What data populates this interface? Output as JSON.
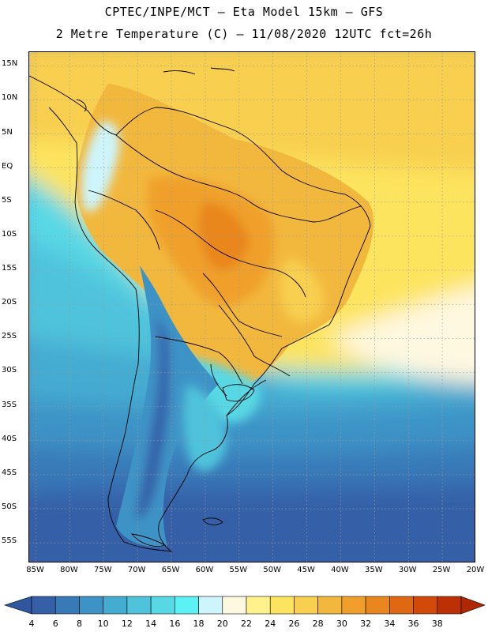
{
  "title_line1": "CPTEC/INPE/MCT –  Eta Model 15km – GFS",
  "title_line2": "2 Metre Temperature (C) – 11/08/2020 12UTC fct=26h",
  "map": {
    "projection": "lat-lon",
    "lon_range": [
      -86,
      -20
    ],
    "lat_range": [
      -58,
      17
    ],
    "lat_labels": [
      {
        "value": 15,
        "text": "15N"
      },
      {
        "value": 10,
        "text": "10N"
      },
      {
        "value": 5,
        "text": "5N"
      },
      {
        "value": 0,
        "text": "EQ"
      },
      {
        "value": -5,
        "text": "5S"
      },
      {
        "value": -10,
        "text": "10S"
      },
      {
        "value": -15,
        "text": "15S"
      },
      {
        "value": -20,
        "text": "20S"
      },
      {
        "value": -25,
        "text": "25S"
      },
      {
        "value": -30,
        "text": "30S"
      },
      {
        "value": -35,
        "text": "35S"
      },
      {
        "value": -40,
        "text": "40S"
      },
      {
        "value": -45,
        "text": "45S"
      },
      {
        "value": -50,
        "text": "50S"
      },
      {
        "value": -55,
        "text": "55S"
      }
    ],
    "lon_labels": [
      {
        "value": -85,
        "text": "85W"
      },
      {
        "value": -80,
        "text": "80W"
      },
      {
        "value": -75,
        "text": "75W"
      },
      {
        "value": -70,
        "text": "70W"
      },
      {
        "value": -65,
        "text": "65W"
      },
      {
        "value": -60,
        "text": "60W"
      },
      {
        "value": -55,
        "text": "55W"
      },
      {
        "value": -50,
        "text": "50W"
      },
      {
        "value": -45,
        "text": "45W"
      },
      {
        "value": -40,
        "text": "40W"
      },
      {
        "value": -35,
        "text": "35W"
      },
      {
        "value": -30,
        "text": "30W"
      },
      {
        "value": -25,
        "text": "25W"
      },
      {
        "value": -20,
        "text": "20W"
      }
    ]
  },
  "colorbar": {
    "labels": [
      "4",
      "6",
      "8",
      "10",
      "12",
      "14",
      "16",
      "18",
      "20",
      "22",
      "24",
      "26",
      "28",
      "30",
      "32",
      "34",
      "36",
      "38"
    ],
    "colors": [
      "#3560a8",
      "#3879b8",
      "#3e93c6",
      "#44abd1",
      "#4fc3dc",
      "#58d8e5",
      "#5cf2f5",
      "#cdf5fb",
      "#fff8e0",
      "#fff28c",
      "#fde45e",
      "#f8cf4f",
      "#f2b83e",
      "#f0a02a",
      "#e9861e",
      "#df6812",
      "#d24a0a",
      "#bd3005"
    ],
    "low_arrow_color": "#2f57a0",
    "high_arrow_color": "#b02800"
  }
}
